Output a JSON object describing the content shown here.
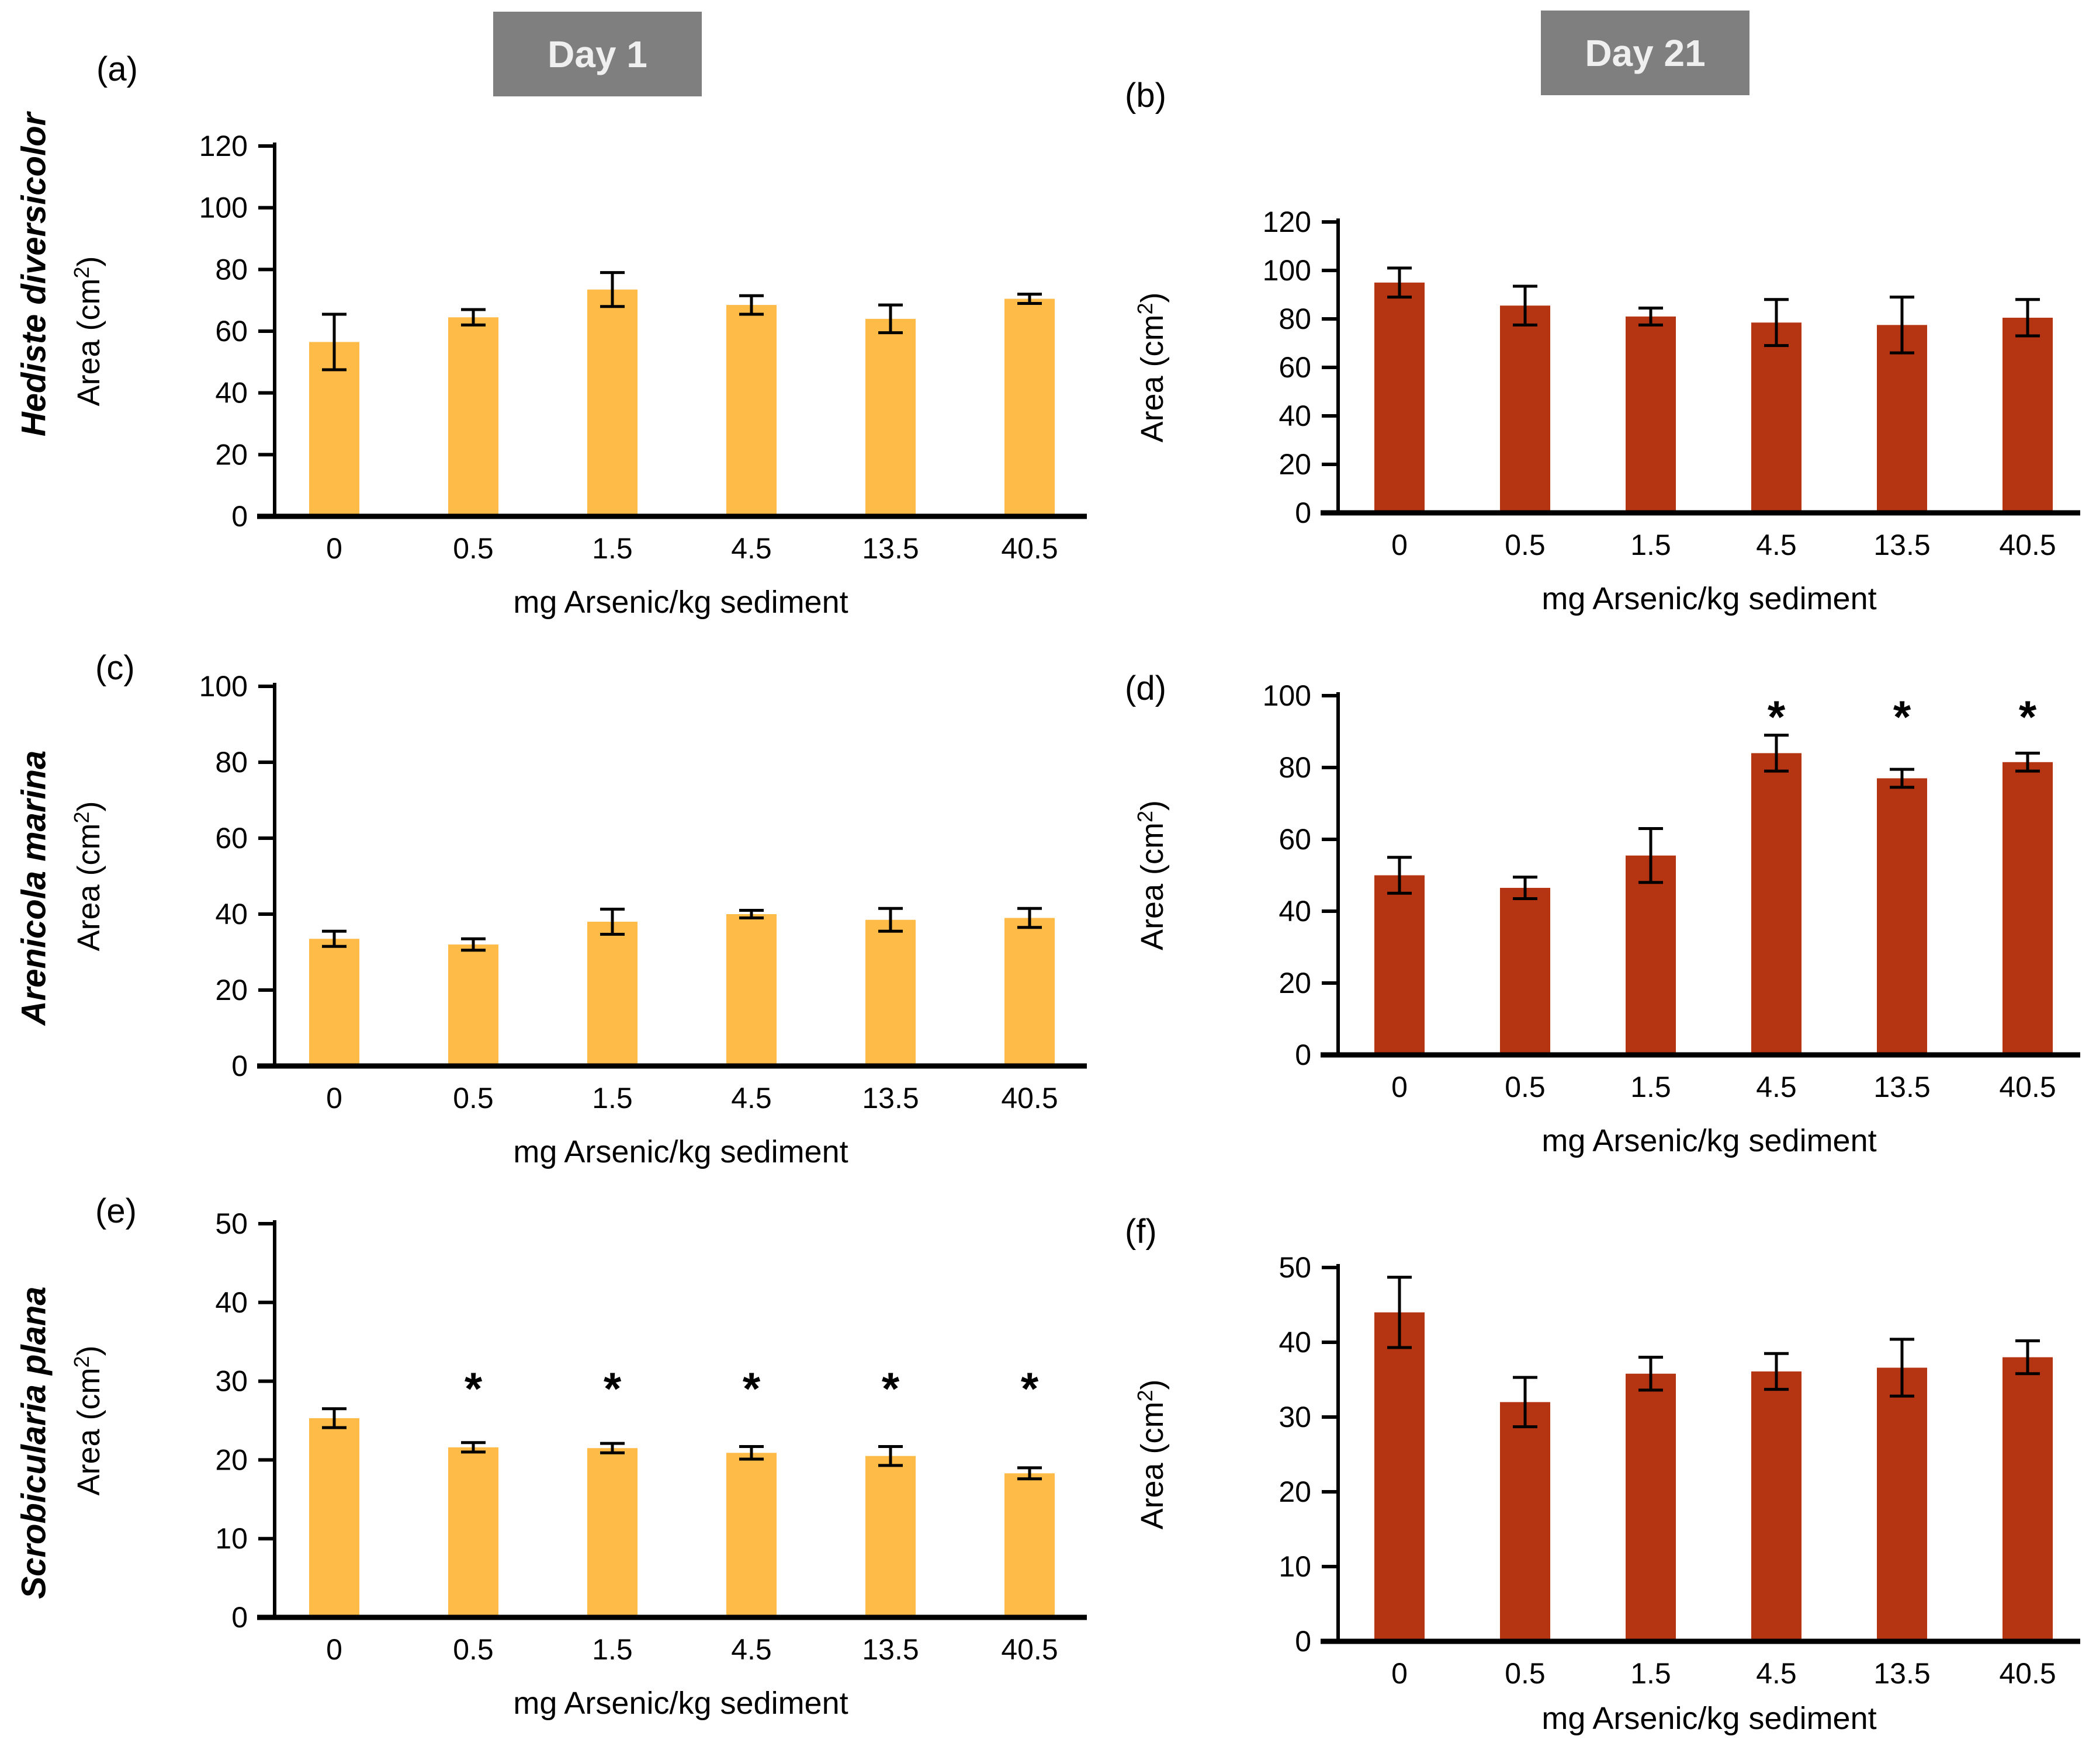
{
  "figure": {
    "columns": [
      {
        "header": "Day 1"
      },
      {
        "header": "Day 21"
      }
    ],
    "rows": [
      {
        "species": "Hediste diversicolor"
      },
      {
        "species": "Arenicola marina"
      },
      {
        "species": "Scrobicularia plana"
      }
    ],
    "styles": {
      "day1_bar_color": "#FEBB48",
      "day21_bar_color": "#B53412",
      "header_bg": "#7F7F7F",
      "header_text": "#EFEFEF",
      "axis_color": "#000000"
    }
  },
  "chart_data": [
    {
      "panel": "(a)",
      "type": "bar",
      "day": "Day 1",
      "species": "Hediste diversicolor",
      "xlabel": "mg Arsenic/kg sediment",
      "ylabel": "Area (cm²)",
      "categories": [
        "0",
        "0.5",
        "1.5",
        "4.5",
        "13.5",
        "40.5"
      ],
      "values": [
        56.5,
        64.5,
        73.5,
        68.5,
        64,
        70.5
      ],
      "errors": [
        9,
        2.5,
        5.5,
        3,
        4.5,
        1.5
      ],
      "significant": [
        false,
        false,
        false,
        false,
        false,
        false
      ],
      "sig_marker": "*",
      "sig_y": null,
      "ylim": [
        0,
        120
      ],
      "ytick_step": 20,
      "bar_color": "#FEBB48",
      "grid": false,
      "legend": "none"
    },
    {
      "panel": "(b)",
      "type": "bar",
      "day": "Day 21",
      "species": "Hediste diversicolor",
      "xlabel": "mg Arsenic/kg sediment",
      "ylabel": "Area (cm²)",
      "categories": [
        "0",
        "0.5",
        "1.5",
        "4.5",
        "13.5",
        "40.5"
      ],
      "values": [
        95,
        85.5,
        81,
        78.5,
        77.5,
        80.5
      ],
      "errors": [
        6,
        8,
        3.5,
        9.5,
        11.5,
        7.5
      ],
      "significant": [
        false,
        false,
        false,
        false,
        false,
        false
      ],
      "sig_marker": "*",
      "sig_y": null,
      "ylim": [
        0,
        120
      ],
      "ytick_step": 20,
      "bar_color": "#B53412",
      "grid": false,
      "legend": "none"
    },
    {
      "panel": "(c)",
      "type": "bar",
      "day": "Day 1",
      "species": "Arenicola marina",
      "xlabel": "mg Arsenic/kg sediment",
      "ylabel": "Area (cm²)",
      "categories": [
        "0",
        "0.5",
        "1.5",
        "4.5",
        "13.5",
        "40.5"
      ],
      "values": [
        33.5,
        32,
        38,
        40,
        38.5,
        39
      ],
      "errors": [
        2,
        1.5,
        3.3,
        1,
        3,
        2.5
      ],
      "significant": [
        false,
        false,
        false,
        false,
        false,
        false
      ],
      "sig_marker": "*",
      "sig_y": null,
      "ylim": [
        0,
        100
      ],
      "ytick_step": 20,
      "bar_color": "#FEBB48",
      "grid": false,
      "legend": "none"
    },
    {
      "panel": "(d)",
      "type": "bar",
      "day": "Day 21",
      "species": "Arenicola marina",
      "xlabel": "mg Arsenic/kg sediment",
      "ylabel": "Area (cm²)",
      "categories": [
        "0",
        "0.5",
        "1.5",
        "4.5",
        "13.5",
        "40.5"
      ],
      "values": [
        50,
        46.5,
        55.5,
        84,
        77,
        81.5
      ],
      "errors": [
        5,
        3,
        7.5,
        5,
        2.5,
        2.5
      ],
      "significant": [
        false,
        false,
        false,
        true,
        true,
        true
      ],
      "sig_marker": "*",
      "sig_y": 94,
      "ylim": [
        0,
        100
      ],
      "ytick_step": 20,
      "bar_color": "#B53412",
      "grid": false,
      "legend": "none"
    },
    {
      "panel": "(e)",
      "type": "bar",
      "day": "Day 1",
      "species": "Scrobicularia plana",
      "xlabel": "mg Arsenic/kg sediment",
      "ylabel": "Area (cm²)",
      "categories": [
        "0",
        "0.5",
        "1.5",
        "4.5",
        "13.5",
        "40.5"
      ],
      "values": [
        25.3,
        21.6,
        21.5,
        20.9,
        20.5,
        18.3
      ],
      "errors": [
        1.2,
        0.6,
        0.6,
        0.8,
        1.2,
        0.7
      ],
      "significant": [
        false,
        true,
        true,
        true,
        true,
        true
      ],
      "sig_marker": "*",
      "sig_y": 29,
      "ylim": [
        0,
        50
      ],
      "ytick_step": 10,
      "bar_color": "#FEBB48",
      "grid": false,
      "legend": "none"
    },
    {
      "panel": "(f)",
      "type": "bar",
      "day": "Day 21",
      "species": "Scrobicularia plana",
      "xlabel": "mg Arsenic/kg sediment",
      "ylabel": "Area (cm²)",
      "categories": [
        "0",
        "0.5",
        "1.5",
        "4.5",
        "13.5",
        "40.5"
      ],
      "values": [
        44,
        32,
        35.8,
        36.1,
        36.6,
        38
      ],
      "errors": [
        4.7,
        3.3,
        2.2,
        2.4,
        3.8,
        2.2
      ],
      "significant": [
        false,
        false,
        false,
        false,
        false,
        false
      ],
      "sig_marker": "*",
      "sig_y": null,
      "ylim": [
        0,
        50
      ],
      "ytick_step": 10,
      "bar_color": "#B53412",
      "grid": false,
      "legend": "none"
    }
  ]
}
